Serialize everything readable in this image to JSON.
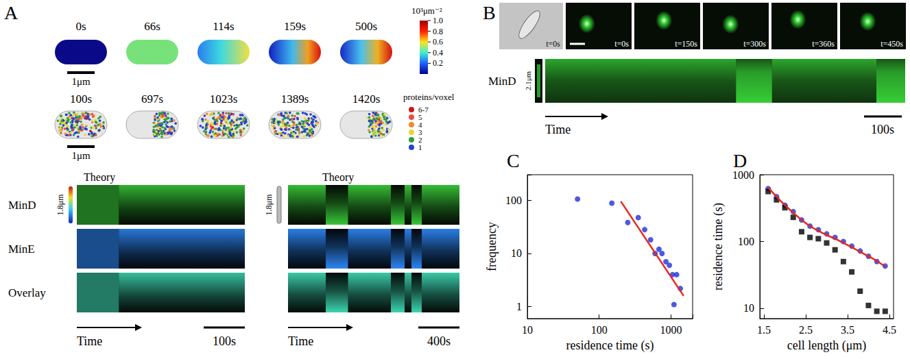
{
  "panels": {
    "A": {
      "panel": "A",
      "concentration_row": {
        "times": [
          "0s",
          "66s",
          "114s",
          "159s",
          "500s"
        ],
        "scale_bar": "1μm"
      },
      "colorbar": {
        "title": "10³μm⁻²",
        "range": [
          0,
          1
        ],
        "ticks": [
          0.2,
          0.4,
          0.6,
          0.8,
          {
            "value": 1,
            "label": "1.0"
          }
        ]
      },
      "particle_row": {
        "times": [
          "100s",
          "697s",
          "1023s",
          "1389s",
          "1420s"
        ],
        "scale_bar": "1μm"
      },
      "particle_legend": {
        "title": "proteins/voxel",
        "labels": [
          "6-7",
          "5",
          "4",
          "3",
          "2",
          "1"
        ],
        "colors": [
          "#c81818",
          "#f04848",
          "#f08a30",
          "#e6d830",
          "#2e9e3a",
          "#2440d0"
        ]
      },
      "kymograph_short": {
        "title": "Theory",
        "length": "1.8μm",
        "rows": [
          "MinD",
          "MinE",
          "Overlay"
        ],
        "time_axis": "Time",
        "scale_bar": "100s"
      },
      "kymograph_long": {
        "title": "Theory",
        "length": "1.8μm",
        "time_axis": "Time",
        "scale_bar": "400s"
      }
    },
    "B": {
      "panel": "B",
      "frames": [
        "t=0s",
        "t=0s",
        "t=150s",
        "t=300s",
        "t=360s",
        "t=450s"
      ],
      "kymograph": {
        "row": "MinD",
        "length": "2.1μm",
        "time_axis": "Time",
        "scale_bar": "100s"
      }
    }
  },
  "chart_data": [
    {
      "panel": "C",
      "type": "scatter",
      "log": true,
      "grid": false,
      "x_label": "residence time (s)",
      "y_label": "frequency",
      "xlim": [
        10,
        2000
      ],
      "ylim": [
        0.6,
        300
      ],
      "xticks": [
        10,
        100,
        1000
      ],
      "yticks": [
        1,
        10,
        100
      ],
      "series": [
        {
          "type": "scatter",
          "color": "#1f2fd8",
          "marker": "circle",
          "x": [
            50,
            150,
            250,
            350,
            430,
            520,
            600,
            680,
            750,
            850,
            950,
            1050,
            1100,
            1200,
            1350
          ],
          "values": [
            105,
            88,
            38,
            47,
            28,
            18,
            10,
            12,
            10,
            7,
            6,
            4,
            1.1,
            4,
            2.2
          ]
        },
        {
          "type": "line",
          "color": "#e8261c",
          "line_style": "solid",
          "x": [
            200,
            1500
          ],
          "values": [
            95,
            1.6
          ]
        }
      ]
    },
    {
      "panel": "D",
      "type": "scatter",
      "log": "y",
      "grid": false,
      "x_label": "cell length (μm)",
      "y_label": "residence time (s)",
      "xlim": [
        1.4,
        4.6
      ],
      "ylim": [
        7,
        1000
      ],
      "xticks": [
        1.5,
        2.5,
        3.5,
        4.5
      ],
      "yticks": [
        10,
        100,
        1000
      ],
      "series": [
        {
          "type": "line",
          "color": "#e8261c",
          "line_style": "solid",
          "x": [
            1.6,
            1.8,
            2.0,
            2.2,
            2.4,
            2.6,
            2.8,
            3.0,
            3.2,
            3.4,
            3.6,
            3.8,
            4.0,
            4.2,
            4.4
          ],
          "values": [
            640,
            470,
            350,
            270,
            210,
            170,
            145,
            125,
            110,
            95,
            82,
            70,
            60,
            51,
            42
          ]
        },
        {
          "type": "scatter",
          "color": "#1f2fd8",
          "marker": "circle",
          "x": [
            1.6,
            1.8,
            2.0,
            2.2,
            2.4,
            2.6,
            2.8,
            3.0,
            3.2,
            3.4,
            3.6,
            3.8,
            4.0,
            4.2,
            4.4
          ],
          "values": [
            620,
            470,
            350,
            280,
            210,
            170,
            150,
            130,
            115,
            100,
            85,
            72,
            60,
            50,
            43
          ]
        },
        {
          "type": "scatter",
          "color": "#000000",
          "marker": "square",
          "x": [
            1.6,
            1.8,
            2.0,
            2.2,
            2.4,
            2.6,
            2.8,
            3.0,
            3.2,
            3.4,
            3.6,
            3.8,
            4.0,
            4.2,
            4.4
          ],
          "values": [
            560,
            420,
            320,
            230,
            140,
            115,
            110,
            95,
            75,
            50,
            35,
            18,
            11,
            9,
            9
          ]
        }
      ]
    }
  ]
}
